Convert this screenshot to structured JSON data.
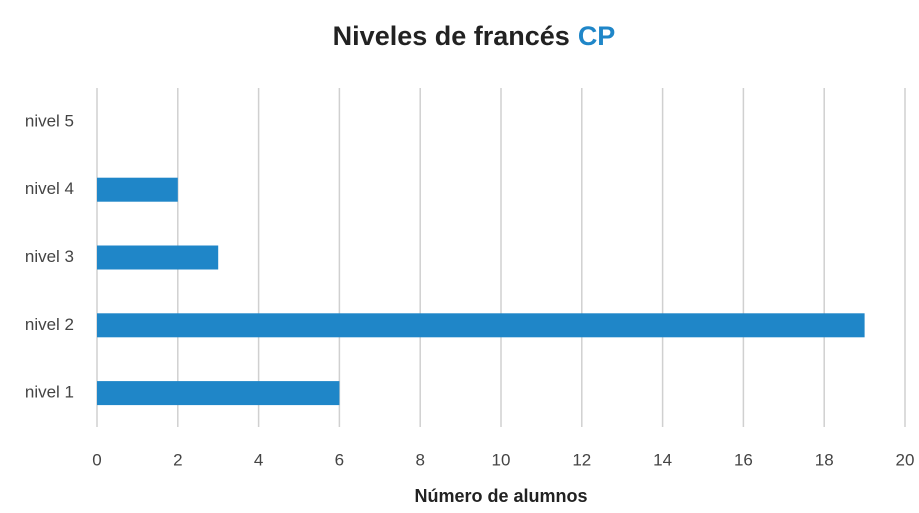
{
  "chart_data": {
    "type": "barh",
    "title": [
      "Niveles de francés",
      "CP"
    ],
    "title_colors": [
      "#222222",
      "#1f86c8"
    ],
    "x_label": "Número de alumnos",
    "categories": [
      "nivel 1",
      "nivel 2",
      "nivel 3",
      "nivel 4",
      "nivel 5"
    ],
    "values": [
      6,
      19,
      3,
      2,
      0
    ],
    "color": "#1f86c8",
    "xlim": [
      0,
      20
    ],
    "xticks": [
      0,
      2,
      4,
      6,
      8,
      10,
      12,
      14,
      16,
      18,
      20
    ],
    "grid": true
  }
}
